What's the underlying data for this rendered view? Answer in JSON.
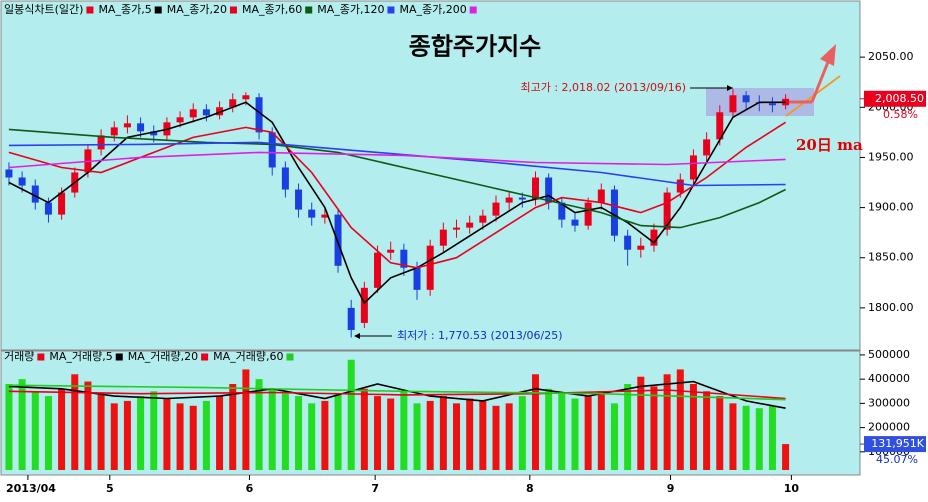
{
  "chart_data": [
    {
      "type": "candlestick",
      "title": "종합주가지수",
      "series": [
        {
          "name": "일봉식차트(일간)",
          "color": "#e8001c",
          "up_color": "#e8001c",
          "down_color": "#1a3fe0",
          "x": [
            0,
            1,
            2,
            3,
            4,
            5,
            6,
            7,
            8,
            9,
            10,
            11,
            12,
            13,
            14,
            15,
            16,
            17,
            18,
            19,
            20,
            21,
            22,
            23,
            24,
            25,
            26,
            27,
            28,
            29,
            30,
            31,
            32,
            33,
            34,
            35,
            36,
            37,
            38,
            39,
            40,
            41,
            42,
            43,
            44,
            45,
            46,
            47,
            48,
            49,
            50,
            51,
            52,
            53,
            54,
            55,
            56,
            57,
            58,
            59
          ],
          "open": [
            1938,
            1930,
            1922,
            1905,
            1893,
            1915,
            1935,
            1958,
            1972,
            1980,
            1984,
            1976,
            1972,
            1985,
            1990,
            1998,
            1992,
            2000,
            2008,
            2010,
            1975,
            1940,
            1918,
            1898,
            1890,
            1893,
            1800,
            1785,
            1820,
            1855,
            1858,
            1840,
            1818,
            1862,
            1878,
            1880,
            1885,
            1892,
            1905,
            1910,
            1908,
            1930,
            1905,
            1888,
            1882,
            1905,
            1918,
            1872,
            1858,
            1862,
            1878,
            1915,
            1928,
            1952,
            1968,
            1995,
            2012,
            2005,
            2004,
            2002
          ],
          "high": [
            1945,
            1936,
            1928,
            1910,
            1920,
            1940,
            1962,
            1978,
            1986,
            1992,
            1990,
            1982,
            1990,
            1996,
            2004,
            2003,
            2006,
            2014,
            2015,
            2014,
            1980,
            1946,
            1924,
            1905,
            1900,
            1898,
            1808,
            1826,
            1862,
            1866,
            1864,
            1846,
            1868,
            1885,
            1888,
            1892,
            1898,
            1912,
            1916,
            1915,
            1936,
            1934,
            1910,
            1894,
            1910,
            1924,
            1922,
            1878,
            1870,
            1884,
            1920,
            1934,
            1958,
            1975,
            2002,
            2018.02,
            2016,
            2012,
            2010,
            2013
          ],
          "low": [
            1922,
            1915,
            1898,
            1885,
            1888,
            1910,
            1930,
            1952,
            1966,
            1974,
            1970,
            1965,
            1968,
            1980,
            1985,
            1986,
            1988,
            1995,
            2002,
            1968,
            1932,
            1910,
            1890,
            1882,
            1884,
            1835,
            1770.53,
            1780,
            1815,
            1848,
            1832,
            1808,
            1812,
            1856,
            1870,
            1874,
            1878,
            1886,
            1898,
            1900,
            1902,
            1898,
            1880,
            1876,
            1878,
            1898,
            1866,
            1842,
            1850,
            1856,
            1872,
            1910,
            1922,
            1946,
            1962,
            1990,
            1998,
            1996,
            1995,
            1998
          ],
          "close": [
            1930,
            1922,
            1905,
            1893,
            1915,
            1935,
            1958,
            1972,
            1980,
            1984,
            1976,
            1972,
            1985,
            1990,
            1998,
            1992,
            2000,
            2008,
            2012,
            1975,
            1940,
            1918,
            1898,
            1890,
            1893,
            1842,
            1778,
            1820,
            1855,
            1858,
            1840,
            1818,
            1862,
            1878,
            1880,
            1885,
            1892,
            1905,
            1910,
            1908,
            1930,
            1905,
            1888,
            1882,
            1905,
            1918,
            1872,
            1858,
            1862,
            1878,
            1915,
            1928,
            1952,
            1968,
            1995,
            2012,
            2005,
            2004,
            2002,
            2008.5
          ]
        }
      ],
      "lines": [
        {
          "name": "MA_종가,5",
          "color": "#000000",
          "x": [
            0,
            3,
            6,
            9,
            12,
            15,
            18,
            20,
            22,
            24,
            26,
            27,
            29,
            31,
            33,
            36,
            39,
            41,
            43,
            45,
            47,
            49,
            51,
            53,
            55,
            57,
            59
          ],
          "values": [
            1925,
            1905,
            1935,
            1970,
            1978,
            1990,
            2005,
            1985,
            1940,
            1900,
            1830,
            1805,
            1830,
            1840,
            1855,
            1880,
            1905,
            1912,
            1895,
            1900,
            1885,
            1865,
            1900,
            1945,
            1990,
            2005,
            2005
          ]
        },
        {
          "name": "MA_종가,20",
          "color": "#e8001c",
          "x": [
            0,
            4,
            7,
            10,
            14,
            18,
            20,
            23,
            26,
            29,
            31,
            34,
            37,
            40,
            42,
            45,
            48,
            50,
            53,
            56,
            59
          ],
          "values": [
            1955,
            1940,
            1935,
            1950,
            1970,
            1980,
            1975,
            1935,
            1880,
            1845,
            1840,
            1850,
            1875,
            1900,
            1910,
            1905,
            1895,
            1905,
            1930,
            1960,
            1985
          ]
        },
        {
          "name": "MA_종가,60",
          "color": "#0e5a14",
          "x": [
            0,
            8,
            15,
            20,
            25,
            30,
            35,
            40,
            45,
            48,
            51,
            54,
            57,
            59
          ],
          "values": [
            1978,
            1970,
            1965,
            1963,
            1955,
            1940,
            1925,
            1910,
            1895,
            1882,
            1880,
            1890,
            1905,
            1918
          ]
        },
        {
          "name": "MA_종가,120",
          "color": "#2a3ff0",
          "x": [
            0,
            10,
            19,
            28,
            37,
            45,
            52,
            59
          ],
          "values": [
            1962,
            1963,
            1965,
            1955,
            1945,
            1935,
            1922,
            1923
          ]
        },
        {
          "name": "MA_종가,200",
          "color": "#e020e0",
          "x": [
            0,
            10,
            19,
            30,
            40,
            50,
            59
          ],
          "values": [
            1940,
            1950,
            1955,
            1952,
            1945,
            1943,
            1948
          ]
        }
      ],
      "annotations": [
        {
          "text": "최고가 : 2,018.02 (2013/09/16)",
          "color": "#d01010"
        },
        {
          "text": "최저가 : 1,770.53 (2013/06/25)",
          "color": "#1030c0"
        },
        {
          "text": "20日 ma",
          "color": "#e00000"
        }
      ],
      "last": {
        "value": 2008.5,
        "label": "2,008.50"
      },
      "change": {
        "value": 0.58,
        "label": "0.58%"
      },
      "xlim": [
        -0.3,
        64.5
      ],
      "ylim": [
        1760,
        2100
      ],
      "yticks": [
        {
          "value": 1800,
          "label": "1800.00"
        },
        {
          "value": 1850,
          "label": "1850.00"
        },
        {
          "value": 1900,
          "label": "1900.00"
        },
        {
          "value": 1950,
          "label": "1950.00"
        },
        {
          "value": 2000,
          "label": "2000.00"
        },
        {
          "value": 2050,
          "label": "2050.00"
        }
      ]
    },
    {
      "type": "bar",
      "series": [
        {
          "name": "거래량",
          "color": "#e8001c",
          "up_color": "#ee1111",
          "down_color": "#22dd22",
          "x": [
            0,
            1,
            2,
            3,
            4,
            5,
            6,
            7,
            8,
            9,
            10,
            11,
            12,
            13,
            14,
            15,
            16,
            17,
            18,
            19,
            20,
            21,
            22,
            23,
            24,
            25,
            26,
            27,
            28,
            29,
            30,
            31,
            32,
            33,
            34,
            35,
            36,
            37,
            38,
            39,
            40,
            41,
            42,
            43,
            44,
            45,
            46,
            47,
            48,
            49,
            50,
            51,
            52,
            53,
            54,
            55,
            56,
            57,
            58,
            59
          ],
          "values": [
            380000,
            400000,
            350000,
            330000,
            360000,
            420000,
            390000,
            340000,
            300000,
            310000,
            330000,
            350000,
            320000,
            300000,
            290000,
            310000,
            330000,
            380000,
            440000,
            400000,
            360000,
            340000,
            330000,
            300000,
            310000,
            340000,
            480000,
            360000,
            330000,
            320000,
            350000,
            300000,
            310000,
            330000,
            300000,
            320000,
            310000,
            290000,
            300000,
            330000,
            420000,
            360000,
            340000,
            320000,
            330000,
            350000,
            300000,
            380000,
            410000,
            370000,
            420000,
            440000,
            380000,
            350000,
            330000,
            300000,
            290000,
            280000,
            290000,
            131951
          ]
        }
      ],
      "lines": [
        {
          "name": "MA_거래량,5",
          "color": "#000000",
          "x": [
            0,
            4,
            8,
            12,
            16,
            20,
            24,
            28,
            32,
            36,
            40,
            44,
            48,
            52,
            56,
            59
          ],
          "values": [
            370000,
            360000,
            330000,
            320000,
            330000,
            360000,
            320000,
            380000,
            330000,
            310000,
            360000,
            330000,
            370000,
            390000,
            310000,
            280000
          ]
        },
        {
          "name": "MA_거래량,20",
          "color": "#e8001c",
          "x": [
            0,
            10,
            20,
            30,
            40,
            50,
            59
          ],
          "values": [
            350000,
            340000,
            345000,
            335000,
            340000,
            355000,
            320000
          ]
        },
        {
          "name": "MA_거래량,60",
          "color": "#22cc22",
          "x": [
            0,
            15,
            30,
            45,
            59
          ],
          "values": [
            375000,
            365000,
            350000,
            340000,
            315000
          ]
        }
      ],
      "last": {
        "value": 131951,
        "label": "131,951K"
      },
      "ratio": {
        "value": 45.07,
        "label": "45.07%"
      },
      "xlim": [
        -0.3,
        64.5
      ],
      "ylim": [
        25000,
        512000
      ],
      "yticks": [
        100000,
        200000,
        300000,
        400000,
        500000
      ],
      "xticks": [
        {
          "value": 1.44,
          "label": "2013/04"
        },
        {
          "value": 7.66,
          "label": "5"
        },
        {
          "value": 18.27,
          "label": "6"
        },
        {
          "value": 27.82,
          "label": "7"
        },
        {
          "value": 39.57,
          "label": "8"
        },
        {
          "value": 50.26,
          "label": "9"
        },
        {
          "value": 59.44,
          "label": "10"
        }
      ]
    }
  ]
}
